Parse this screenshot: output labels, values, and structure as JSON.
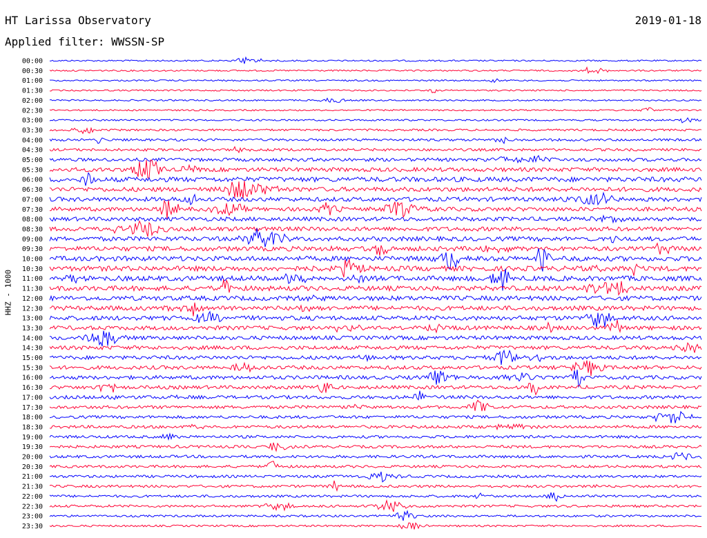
{
  "header": {
    "title": "HT Larissa Observatory",
    "date": "2019-01-18",
    "filter": "Applied filter: WWSSN-SP"
  },
  "chart_data": {
    "type": "line",
    "title": "HT Larissa Observatory",
    "subtitle": "Applied filter: WWSSN-SP",
    "ylabel": "HHZ - 1000",
    "xlabel": "",
    "row_times": [
      "00:00",
      "00:30",
      "01:00",
      "01:30",
      "02:00",
      "02:30",
      "03:00",
      "03:30",
      "04:00",
      "04:30",
      "05:00",
      "05:30",
      "06:00",
      "06:30",
      "07:00",
      "07:30",
      "08:00",
      "08:30",
      "09:00",
      "09:30",
      "10:00",
      "10:30",
      "11:00",
      "11:30",
      "12:00",
      "12:30",
      "13:00",
      "13:30",
      "14:00",
      "14:30",
      "15:00",
      "15:30",
      "16:00",
      "16:30",
      "17:00",
      "17:30",
      "18:00",
      "18:30",
      "19:00",
      "19:30",
      "20:00",
      "20:30",
      "21:00",
      "21:30",
      "22:00",
      "22:30",
      "23:00",
      "23:30"
    ],
    "series_colors": [
      "#0000ff",
      "#ff0033"
    ],
    "background": "#ffffff",
    "grid": false,
    "legend": "none",
    "trace_noise_levels": [
      0.2,
      0.2,
      0.2,
      0.2,
      0.2,
      0.2,
      0.25,
      0.35,
      0.45,
      0.5,
      0.7,
      0.9,
      1.1,
      1.0,
      0.95,
      0.9,
      0.9,
      0.95,
      1.0,
      1.05,
      1.1,
      1.15,
      1.15,
      1.1,
      1.05,
      1.0,
      1.0,
      0.9,
      0.85,
      0.85,
      0.8,
      0.8,
      0.8,
      0.75,
      0.7,
      0.65,
      0.6,
      0.6,
      0.55,
      0.55,
      0.55,
      0.5,
      0.5,
      0.5,
      0.45,
      0.45,
      0.35,
      0.3
    ]
  }
}
